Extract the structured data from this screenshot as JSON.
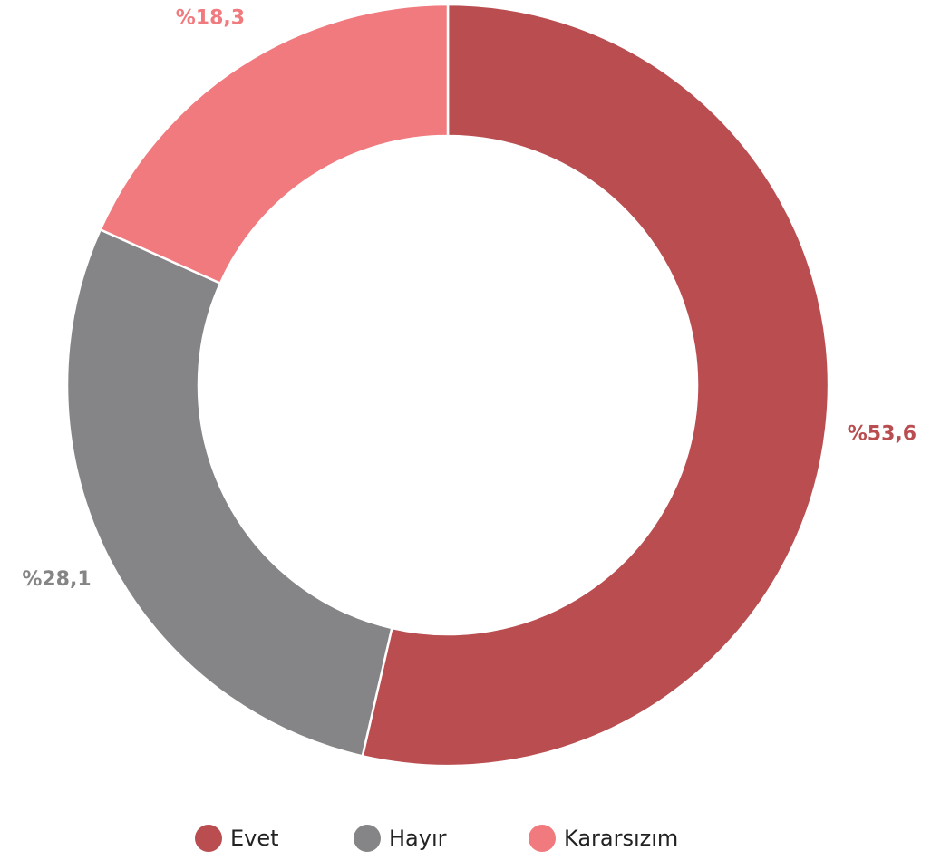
{
  "chart_data": {
    "type": "donut",
    "categories": [
      "Evet",
      "Hayır",
      "Kararsızım"
    ],
    "values": [
      53.6,
      28.1,
      18.3
    ],
    "value_labels": [
      "%53,6",
      "%28,1",
      "%18,3"
    ],
    "colors": [
      "#b94d50",
      "#858587",
      "#f07a7e"
    ],
    "legend": "bottom"
  }
}
